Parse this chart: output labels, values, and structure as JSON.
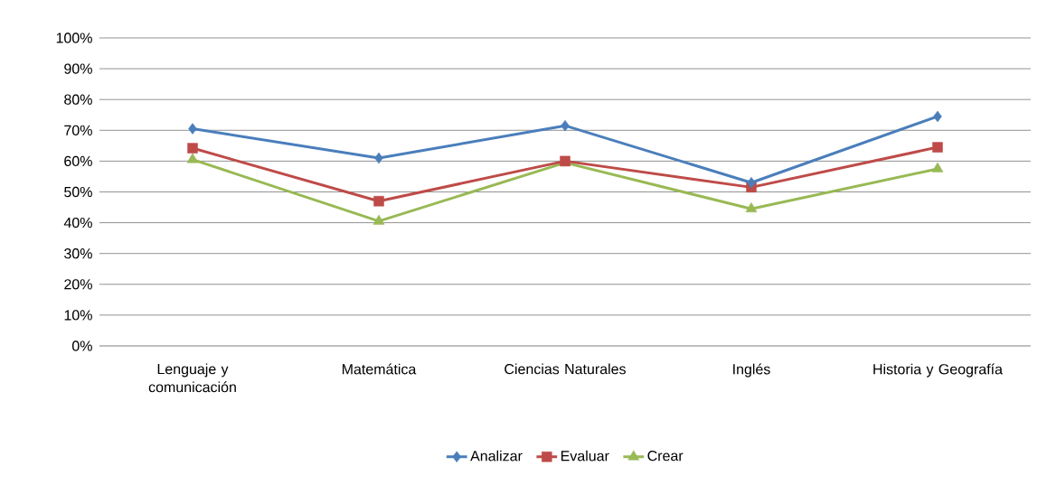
{
  "chart_data": {
    "type": "line",
    "categories": [
      "Lenguaje y comunicación",
      "Matemática",
      "Ciencias Naturales",
      "Inglés",
      "Historia y Geografía"
    ],
    "series": [
      {
        "name": "Analizar",
        "color": "#4a7ebb",
        "marker": "diamond",
        "values": [
          70.5,
          61,
          71.5,
          53,
          74.5
        ]
      },
      {
        "name": "Evaluar",
        "color": "#be4b48",
        "marker": "square",
        "values": [
          64.2,
          47,
          60,
          51.5,
          64.5
        ]
      },
      {
        "name": "Crear",
        "color": "#98b954",
        "marker": "triangle",
        "values": [
          60.5,
          40.5,
          59.5,
          44.5,
          57.5
        ]
      }
    ],
    "ylim": [
      0,
      100
    ],
    "yticks": [
      {
        "value": 0,
        "label": "0%"
      },
      {
        "value": 10,
        "label": "10%"
      },
      {
        "value": 20,
        "label": "20%"
      },
      {
        "value": 30,
        "label": "30%"
      },
      {
        "value": 40,
        "label": "40%"
      },
      {
        "value": 50,
        "label": "50%"
      },
      {
        "value": 60,
        "label": "60%"
      },
      {
        "value": 70,
        "label": "70%"
      },
      {
        "value": 80,
        "label": "80%"
      },
      {
        "value": 90,
        "label": "90%"
      },
      {
        "value": 100,
        "label": "100%"
      }
    ],
    "grid": "y",
    "legend": "bottom",
    "line_style": "solid"
  }
}
